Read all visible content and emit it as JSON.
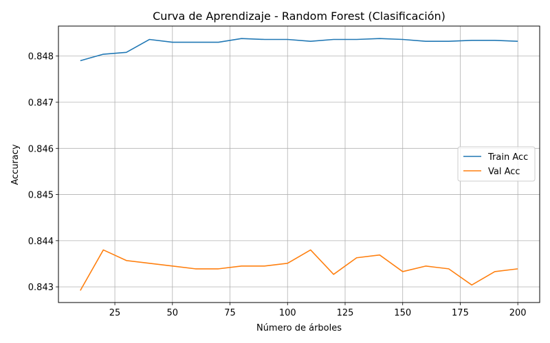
{
  "chart_data": {
    "type": "line",
    "title": "Curva de Aprendizaje - Random Forest (Clasificación)",
    "xlabel": "Número de árboles",
    "ylabel": "Accuracy",
    "xlim": [
      0.5,
      209.5
    ],
    "ylim": [
      0.84266,
      0.84865
    ],
    "xticks": [
      25,
      50,
      75,
      100,
      125,
      150,
      175,
      200
    ],
    "yticks": [
      0.843,
      0.844,
      0.845,
      0.846,
      0.847,
      0.848
    ],
    "ytick_labels": [
      "0.843",
      "0.844",
      "0.845",
      "0.846",
      "0.847",
      "0.848"
    ],
    "grid": true,
    "legend_position": "center-right",
    "x": [
      10,
      20,
      30,
      40,
      50,
      60,
      70,
      80,
      90,
      100,
      110,
      120,
      130,
      140,
      150,
      160,
      170,
      180,
      190,
      200
    ],
    "series": [
      {
        "name": "Train Acc",
        "color": "#1f77b4",
        "values": [
          0.8479,
          0.84804,
          0.84808,
          0.84836,
          0.8483,
          0.8483,
          0.8483,
          0.84838,
          0.84836,
          0.84836,
          0.84832,
          0.84836,
          0.84836,
          0.84838,
          0.84836,
          0.84832,
          0.84832,
          0.84834,
          0.84834,
          0.84832
        ]
      },
      {
        "name": "Val Acc",
        "color": "#ff7f0e",
        "values": [
          0.84292,
          0.8438,
          0.84357,
          0.84351,
          0.84345,
          0.84339,
          0.84339,
          0.84345,
          0.84345,
          0.84351,
          0.8438,
          0.84327,
          0.84363,
          0.84369,
          0.84333,
          0.84345,
          0.84339,
          0.84304,
          0.84333,
          0.84339
        ]
      }
    ]
  }
}
